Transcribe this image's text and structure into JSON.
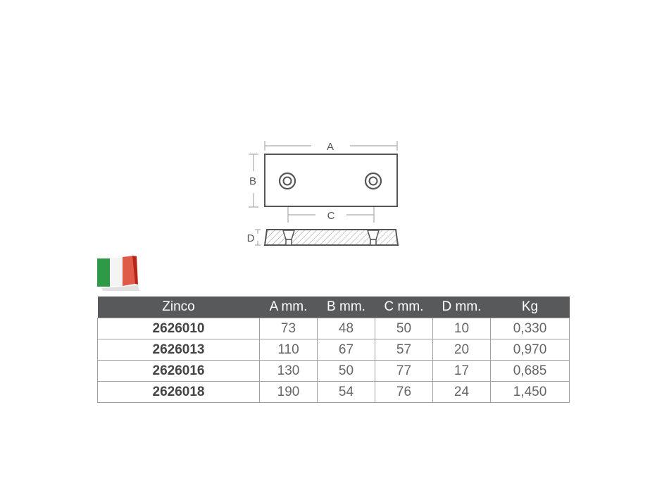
{
  "diagram": {
    "label_a": "A",
    "label_b": "B",
    "label_c": "C",
    "label_d": "D"
  },
  "flag": {
    "icon": "italy-flag-icon",
    "colors": [
      "#2e9a47",
      "#ffffff",
      "#d9352b"
    ]
  },
  "table": {
    "headers": [
      "Zinco",
      "A mm.",
      "B mm.",
      "C mm.",
      "D mm.",
      "Kg"
    ],
    "rows": [
      [
        "2626010",
        "73",
        "48",
        "50",
        "10",
        "0,330"
      ],
      [
        "2626013",
        "110",
        "67",
        "57",
        "20",
        "0,970"
      ],
      [
        "2626016",
        "130",
        "50",
        "77",
        "17",
        "0,685"
      ],
      [
        "2626018",
        "190",
        "54",
        "76",
        "24",
        "1,450"
      ]
    ]
  }
}
